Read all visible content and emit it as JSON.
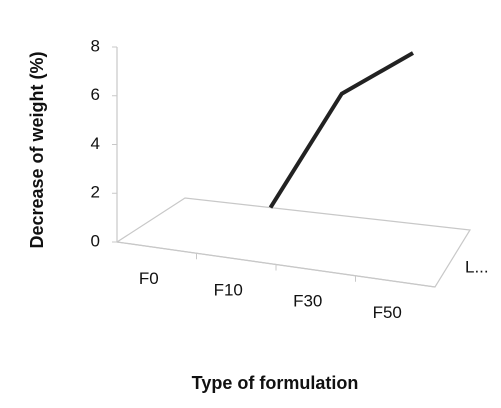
{
  "chart_data": {
    "type": "line3d",
    "x_label": "Type of formulation",
    "y_label": "Decrease of weight (%)",
    "categories": [
      "F0",
      "F10",
      "F30",
      "F50"
    ],
    "series": [
      {
        "name": "L...",
        "color": "#222222",
        "values": [
          null,
          0,
          5,
          7
        ]
      }
    ],
    "ylim": [
      0,
      8
    ],
    "yticks": [
      0,
      2,
      4,
      6,
      8
    ]
  }
}
